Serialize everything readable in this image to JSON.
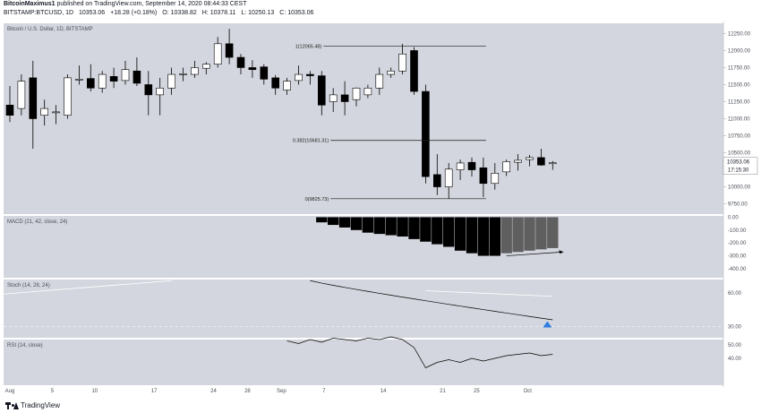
{
  "header": {
    "author": "BitcoinMaximus1",
    "published_text": " published on TradingView.com, September 14, 2020 08:44:33 CEST",
    "symbol": "BITSTAMP:BTCUSD, 1D",
    "last": "10353.06",
    "change": "+18.28 (+0.18%)",
    "open": "O: 10338.82",
    "high": "H: 10378.11",
    "low": "L: 10250.13",
    "close": "C: 10353.06"
  },
  "footer": {
    "brand": "TradingView"
  },
  "colors": {
    "panel_bg": "#d3d6de",
    "up": "#ffffff",
    "down": "#000000",
    "hist_dark": "#000000",
    "hist_grey": "#5f5f5f",
    "signal": "#6b8dd6",
    "stoch_marker": "#2e7de0"
  },
  "chart_data": {
    "type": "candlestick",
    "price_panel": {
      "title": "Bitcoin / U.S. Dollar, 1D, BITSTAMP",
      "y_ticks": [
        "12250.00",
        "12000.00",
        "11750.00",
        "11500.00",
        "11250.00",
        "11000.00",
        "10750.00",
        "10500.00",
        "10250.00",
        "10000.00",
        "9750.00"
      ],
      "ylim": [
        9600,
        12400
      ],
      "last_price_label": "10353.06",
      "countdown_label": "17:15:30",
      "candles": [
        {
          "o": 11200,
          "h": 11480,
          "l": 10950,
          "c": 11050
        },
        {
          "o": 11150,
          "h": 11650,
          "l": 11050,
          "c": 11550
        },
        {
          "o": 11600,
          "h": 11850,
          "l": 10560,
          "c": 11000
        },
        {
          "o": 11050,
          "h": 11280,
          "l": 10900,
          "c": 11150
        },
        {
          "o": 11100,
          "h": 11200,
          "l": 10920,
          "c": 11100
        },
        {
          "o": 11050,
          "h": 11650,
          "l": 11000,
          "c": 11600
        },
        {
          "o": 11570,
          "h": 11780,
          "l": 11500,
          "c": 11580
        },
        {
          "o": 11590,
          "h": 11800,
          "l": 11400,
          "c": 11450
        },
        {
          "o": 11450,
          "h": 11700,
          "l": 11380,
          "c": 11650
        },
        {
          "o": 11620,
          "h": 11750,
          "l": 11450,
          "c": 11550
        },
        {
          "o": 11560,
          "h": 11850,
          "l": 11500,
          "c": 11720
        },
        {
          "o": 11700,
          "h": 11900,
          "l": 11480,
          "c": 11520
        },
        {
          "o": 11500,
          "h": 11700,
          "l": 11050,
          "c": 11350
        },
        {
          "o": 11350,
          "h": 11600,
          "l": 11050,
          "c": 11450
        },
        {
          "o": 11450,
          "h": 11750,
          "l": 11350,
          "c": 11650
        },
        {
          "o": 11650,
          "h": 11750,
          "l": 11550,
          "c": 11660
        },
        {
          "o": 11650,
          "h": 11850,
          "l": 11600,
          "c": 11750
        },
        {
          "o": 11740,
          "h": 11830,
          "l": 11650,
          "c": 11800
        },
        {
          "o": 11800,
          "h": 12200,
          "l": 11750,
          "c": 12100
        },
        {
          "o": 12100,
          "h": 12320,
          "l": 11800,
          "c": 11900
        },
        {
          "o": 11900,
          "h": 11950,
          "l": 11650,
          "c": 11750
        },
        {
          "o": 11750,
          "h": 11860,
          "l": 11600,
          "c": 11720
        },
        {
          "o": 11760,
          "h": 11800,
          "l": 11500,
          "c": 11580
        },
        {
          "o": 11600,
          "h": 11640,
          "l": 11350,
          "c": 11450
        },
        {
          "o": 11420,
          "h": 11600,
          "l": 11350,
          "c": 11550
        },
        {
          "o": 11560,
          "h": 11780,
          "l": 11500,
          "c": 11650
        },
        {
          "o": 11650,
          "h": 11700,
          "l": 11500,
          "c": 11630
        },
        {
          "o": 11630,
          "h": 11700,
          "l": 11050,
          "c": 11200
        },
        {
          "o": 11250,
          "h": 11450,
          "l": 11100,
          "c": 11350
        },
        {
          "o": 11350,
          "h": 11550,
          "l": 11050,
          "c": 11250
        },
        {
          "o": 11280,
          "h": 11460,
          "l": 11180,
          "c": 11450
        },
        {
          "o": 11350,
          "h": 11500,
          "l": 11300,
          "c": 11450
        },
        {
          "o": 11450,
          "h": 11750,
          "l": 11350,
          "c": 11650
        },
        {
          "o": 11650,
          "h": 11750,
          "l": 11600,
          "c": 11700
        },
        {
          "o": 11700,
          "h": 12100,
          "l": 11650,
          "c": 11950
        },
        {
          "o": 12000,
          "h": 12050,
          "l": 11350,
          "c": 11400
        },
        {
          "o": 11400,
          "h": 11500,
          "l": 10050,
          "c": 10150
        },
        {
          "o": 10180,
          "h": 10480,
          "l": 9880,
          "c": 10000
        },
        {
          "o": 10000,
          "h": 10350,
          "l": 9830,
          "c": 10260
        },
        {
          "o": 10250,
          "h": 10400,
          "l": 10100,
          "c": 10350
        },
        {
          "o": 10360,
          "h": 10430,
          "l": 10150,
          "c": 10250
        },
        {
          "o": 10280,
          "h": 10430,
          "l": 9850,
          "c": 10050
        },
        {
          "o": 10050,
          "h": 10350,
          "l": 9960,
          "c": 10200
        },
        {
          "o": 10220,
          "h": 10400,
          "l": 10160,
          "c": 10370
        },
        {
          "o": 10360,
          "h": 10480,
          "l": 10240,
          "c": 10390
        },
        {
          "o": 10400,
          "h": 10470,
          "l": 10300,
          "c": 10430
        },
        {
          "o": 10430,
          "h": 10560,
          "l": 10310,
          "c": 10320
        },
        {
          "o": 10339,
          "h": 10378,
          "l": 10250,
          "c": 10353
        }
      ],
      "fib_levels": [
        {
          "label": "1(12065.48)",
          "value": 12065.48
        },
        {
          "label": "0.382(10681.31)",
          "value": 10681.31
        },
        {
          "label": "0(9825.73)",
          "value": 9825.73
        }
      ]
    },
    "macd_panel": {
      "title": "MACD (21, 42, close, 24)",
      "y_ticks": [
        "0.00",
        "-100.00",
        "-200.00",
        "-300.00",
        "-400.00"
      ],
      "ylim": [
        -470,
        10
      ],
      "histogram": [
        -40,
        -60,
        -80,
        -100,
        -120,
        -130,
        -140,
        -150,
        -170,
        -190,
        -210,
        -230,
        -260,
        -280,
        -300,
        -300,
        -280,
        -270,
        -260,
        -250,
        -240
      ],
      "histogram_start_index": 27,
      "hist_grey_from_offset": 16
    },
    "stoch_panel": {
      "title": "Stoch (14, 28, 24)",
      "y_ticks": [
        "60.00",
        "30.00"
      ],
      "ylim": [
        20,
        72
      ]
    },
    "rsi_panel": {
      "title": "RSI (14, close)",
      "y_ticks": [
        "50.00",
        "40.00"
      ],
      "ylim": [
        20,
        54
      ]
    },
    "x_ticks": [
      "Aug",
      "5",
      "10",
      "17",
      "24",
      "28",
      "Sep",
      "7",
      "14",
      "21",
      "25",
      "Oct"
    ]
  }
}
